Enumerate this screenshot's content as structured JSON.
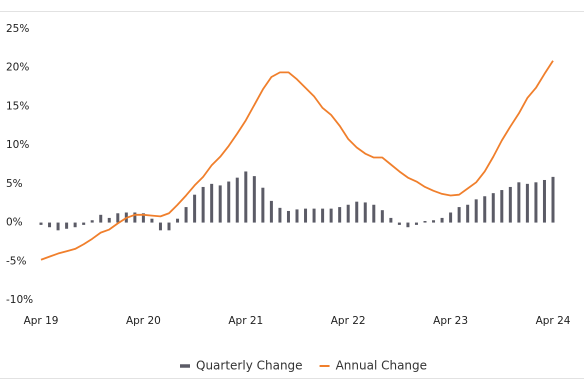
{
  "chart_data": {
    "type": "combo",
    "categories": [
      "Apr 19",
      null,
      null,
      null,
      null,
      null,
      null,
      null,
      null,
      null,
      null,
      null,
      "Apr 20",
      null,
      null,
      null,
      null,
      null,
      null,
      null,
      null,
      null,
      null,
      null,
      "Apr 21",
      null,
      null,
      null,
      null,
      null,
      null,
      null,
      null,
      null,
      null,
      null,
      "Apr 22",
      null,
      null,
      null,
      null,
      null,
      null,
      null,
      null,
      null,
      null,
      null,
      "Apr 23",
      null,
      null,
      null,
      null,
      null,
      null,
      null,
      null,
      null,
      null,
      null,
      "Apr 24"
    ],
    "series": [
      {
        "name": "Quarterly Change",
        "type": "bar",
        "color": "#5b5b66",
        "values": [
          -0.3,
          -0.6,
          -1.0,
          -0.8,
          -0.6,
          -0.3,
          0.3,
          1.0,
          0.6,
          1.2,
          1.3,
          1.3,
          1.2,
          0.5,
          -1.0,
          -1.0,
          0.5,
          2.0,
          3.6,
          4.6,
          5.0,
          4.8,
          5.3,
          5.8,
          6.6,
          6.0,
          4.5,
          2.8,
          1.9,
          1.5,
          1.7,
          1.8,
          1.8,
          1.8,
          1.8,
          2.0,
          2.3,
          2.7,
          2.6,
          2.3,
          1.6,
          0.6,
          -0.3,
          -0.6,
          -0.3,
          0.2,
          0.3,
          0.6,
          1.3,
          2.0,
          2.3,
          3.0,
          3.4,
          3.8,
          4.2,
          4.6,
          5.2,
          5.0,
          5.2,
          5.5,
          5.9
        ]
      },
      {
        "name": "Annual Change",
        "type": "line",
        "color": "#f07f2c",
        "values": [
          -4.8,
          -4.4,
          -4.0,
          -3.7,
          -3.4,
          -2.8,
          -2.1,
          -1.3,
          -0.9,
          -0.1,
          0.6,
          1.0,
          1.0,
          0.9,
          0.8,
          1.2,
          2.3,
          3.5,
          4.8,
          5.9,
          7.4,
          8.5,
          9.9,
          11.5,
          13.2,
          15.2,
          17.2,
          18.8,
          19.4,
          19.4,
          18.5,
          17.4,
          16.3,
          14.8,
          13.9,
          12.5,
          10.8,
          9.7,
          8.9,
          8.4,
          8.4,
          7.5,
          6.6,
          5.8,
          5.3,
          4.6,
          4.1,
          3.7,
          3.5,
          3.6,
          4.4,
          5.2,
          6.6,
          8.5,
          10.6,
          12.4,
          14.1,
          16.1,
          17.4,
          19.2,
          20.9
        ]
      }
    ],
    "ylim": [
      -10,
      25
    ],
    "yticks": [
      {
        "value": -10,
        "label": "-10%"
      },
      {
        "value": -5,
        "label": "-5%"
      },
      {
        "value": 0,
        "label": "0%"
      },
      {
        "value": 5,
        "label": "5%"
      },
      {
        "value": 10,
        "label": "10%"
      },
      {
        "value": 15,
        "label": "15%"
      },
      {
        "value": 20,
        "label": "20%"
      },
      {
        "value": 25,
        "label": "25%"
      }
    ],
    "grid": false,
    "legend": "bottom"
  }
}
